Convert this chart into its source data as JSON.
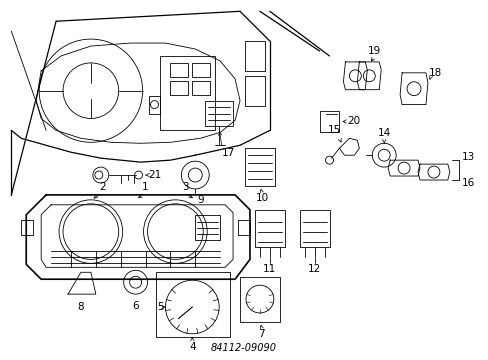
{
  "background_color": "#ffffff",
  "line_color": "#000000",
  "fig_width": 4.89,
  "fig_height": 3.6,
  "dpi": 100,
  "footnote": "84112-09090",
  "label_fontsize": 7.5
}
